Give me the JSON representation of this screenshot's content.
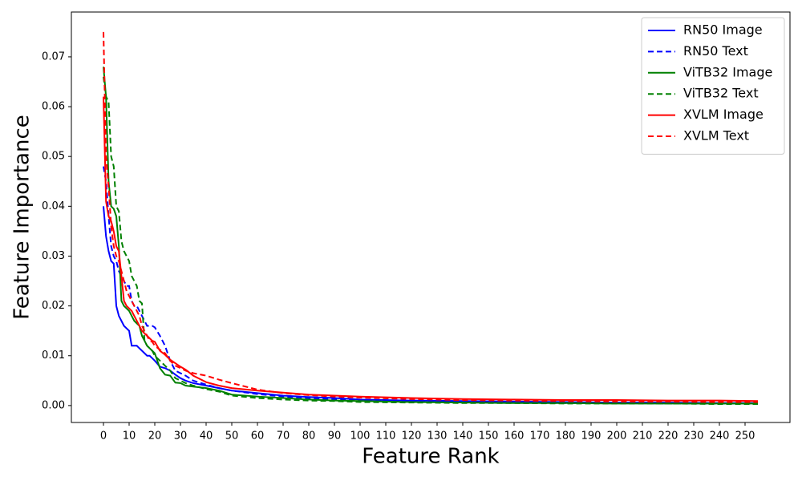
{
  "chart_data": {
    "type": "line",
    "x_label": "Feature Rank",
    "y_label": "Feature Importance",
    "x": [
      0,
      1,
      2,
      3,
      4,
      5,
      6,
      7,
      8,
      9,
      10,
      11,
      12,
      13,
      14,
      15,
      16,
      17,
      18,
      19,
      20,
      22,
      24,
      26,
      28,
      30,
      32,
      35,
      40,
      45,
      50,
      60,
      70,
      80,
      90,
      100,
      120,
      140,
      160,
      180,
      200,
      220,
      240,
      255
    ],
    "series": [
      {
        "name": "RN50 Image",
        "color": "#0000ff",
        "style": "solid",
        "values": [
          0.04,
          0.034,
          0.031,
          0.029,
          0.0285,
          0.02,
          0.018,
          0.017,
          0.016,
          0.0155,
          0.015,
          0.012,
          0.012,
          0.012,
          0.0115,
          0.011,
          0.0105,
          0.01,
          0.01,
          0.0095,
          0.009,
          0.0078,
          0.0075,
          0.007,
          0.0062,
          0.0055,
          0.005,
          0.0045,
          0.004,
          0.0035,
          0.003,
          0.0025,
          0.002,
          0.0017,
          0.0015,
          0.0012,
          0.001,
          0.0009,
          0.0008,
          0.0007,
          0.0006,
          0.0006,
          0.0005,
          0.0005
        ]
      },
      {
        "name": "RN50 Text",
        "color": "#0000ff",
        "style": "dashed",
        "values": [
          0.048,
          0.045,
          0.038,
          0.032,
          0.03,
          0.029,
          0.027,
          0.026,
          0.025,
          0.024,
          0.024,
          0.021,
          0.02,
          0.02,
          0.019,
          0.018,
          0.017,
          0.016,
          0.016,
          0.016,
          0.0157,
          0.014,
          0.012,
          0.009,
          0.007,
          0.0065,
          0.006,
          0.005,
          0.0042,
          0.0035,
          0.003,
          0.0023,
          0.0018,
          0.0015,
          0.0012,
          0.001,
          0.0008,
          0.0007,
          0.0006,
          0.0005,
          0.0005,
          0.0004,
          0.0004,
          0.0004
        ]
      },
      {
        "name": "ViTB32 Image",
        "color": "#008000",
        "style": "solid",
        "values": [
          0.068,
          0.062,
          0.045,
          0.04,
          0.0395,
          0.038,
          0.032,
          0.021,
          0.02,
          0.0195,
          0.019,
          0.018,
          0.017,
          0.0165,
          0.016,
          0.014,
          0.013,
          0.012,
          0.0115,
          0.011,
          0.0105,
          0.0075,
          0.0062,
          0.006,
          0.0046,
          0.0045,
          0.004,
          0.0038,
          0.0035,
          0.003,
          0.0022,
          0.0018,
          0.0015,
          0.0012,
          0.001,
          0.0009,
          0.0007,
          0.0006,
          0.0005,
          0.0005,
          0.0004,
          0.0004,
          0.0004,
          0.0004
        ]
      },
      {
        "name": "ViTB32 Text",
        "color": "#008000",
        "style": "dashed",
        "values": [
          0.066,
          0.062,
          0.061,
          0.05,
          0.048,
          0.04,
          0.039,
          0.033,
          0.031,
          0.03,
          0.029,
          0.026,
          0.025,
          0.024,
          0.021,
          0.0205,
          0.013,
          0.012,
          0.0115,
          0.011,
          0.01,
          0.009,
          0.008,
          0.007,
          0.0055,
          0.005,
          0.0045,
          0.004,
          0.0033,
          0.0028,
          0.002,
          0.0015,
          0.0012,
          0.001,
          0.0009,
          0.0007,
          0.0006,
          0.0005,
          0.0005,
          0.0004,
          0.0004,
          0.0004,
          0.0003,
          0.0003
        ]
      },
      {
        "name": "XVLM Image",
        "color": "#ff0000",
        "style": "solid",
        "values": [
          0.062,
          0.041,
          0.038,
          0.037,
          0.035,
          0.032,
          0.031,
          0.026,
          0.021,
          0.02,
          0.0195,
          0.019,
          0.018,
          0.017,
          0.016,
          0.015,
          0.0145,
          0.014,
          0.0135,
          0.013,
          0.0128,
          0.011,
          0.0102,
          0.0092,
          0.0085,
          0.0078,
          0.0072,
          0.006,
          0.0047,
          0.004,
          0.0035,
          0.003,
          0.0026,
          0.0022,
          0.002,
          0.0018,
          0.0015,
          0.0013,
          0.0012,
          0.0011,
          0.0011,
          0.001,
          0.001,
          0.0009
        ]
      },
      {
        "name": "XVLM Text",
        "color": "#ff0000",
        "style": "dashed",
        "values": [
          0.075,
          0.05,
          0.044,
          0.036,
          0.032,
          0.03,
          0.029,
          0.027,
          0.025,
          0.023,
          0.022,
          0.021,
          0.02,
          0.019,
          0.018,
          0.016,
          0.015,
          0.014,
          0.013,
          0.0128,
          0.012,
          0.0112,
          0.0105,
          0.009,
          0.008,
          0.0075,
          0.007,
          0.0065,
          0.006,
          0.0052,
          0.0045,
          0.0032,
          0.0025,
          0.0021,
          0.0018,
          0.0016,
          0.0013,
          0.0011,
          0.001,
          0.0009,
          0.0008,
          0.0008,
          0.0007,
          0.0007
        ]
      }
    ],
    "xlim": [
      -12.5,
      267.5
    ],
    "xticks": [
      0,
      10,
      20,
      30,
      40,
      50,
      60,
      70,
      80,
      90,
      100,
      110,
      120,
      130,
      140,
      150,
      160,
      170,
      180,
      190,
      200,
      210,
      220,
      230,
      240,
      250
    ],
    "ylim": [
      -0.0034,
      0.079
    ],
    "yticks": [
      {
        "value": 0,
        "label": "0.00"
      },
      {
        "value": 0.01,
        "label": "0.01"
      },
      {
        "value": 0.02,
        "label": "0.02"
      },
      {
        "value": 0.03,
        "label": "0.03"
      },
      {
        "value": 0.04,
        "label": "0.04"
      },
      {
        "value": 0.05,
        "label": "0.05"
      },
      {
        "value": 0.06,
        "label": "0.06"
      },
      {
        "value": 0.07,
        "label": "0.07"
      }
    ],
    "grid": false,
    "legend": "upper right"
  }
}
